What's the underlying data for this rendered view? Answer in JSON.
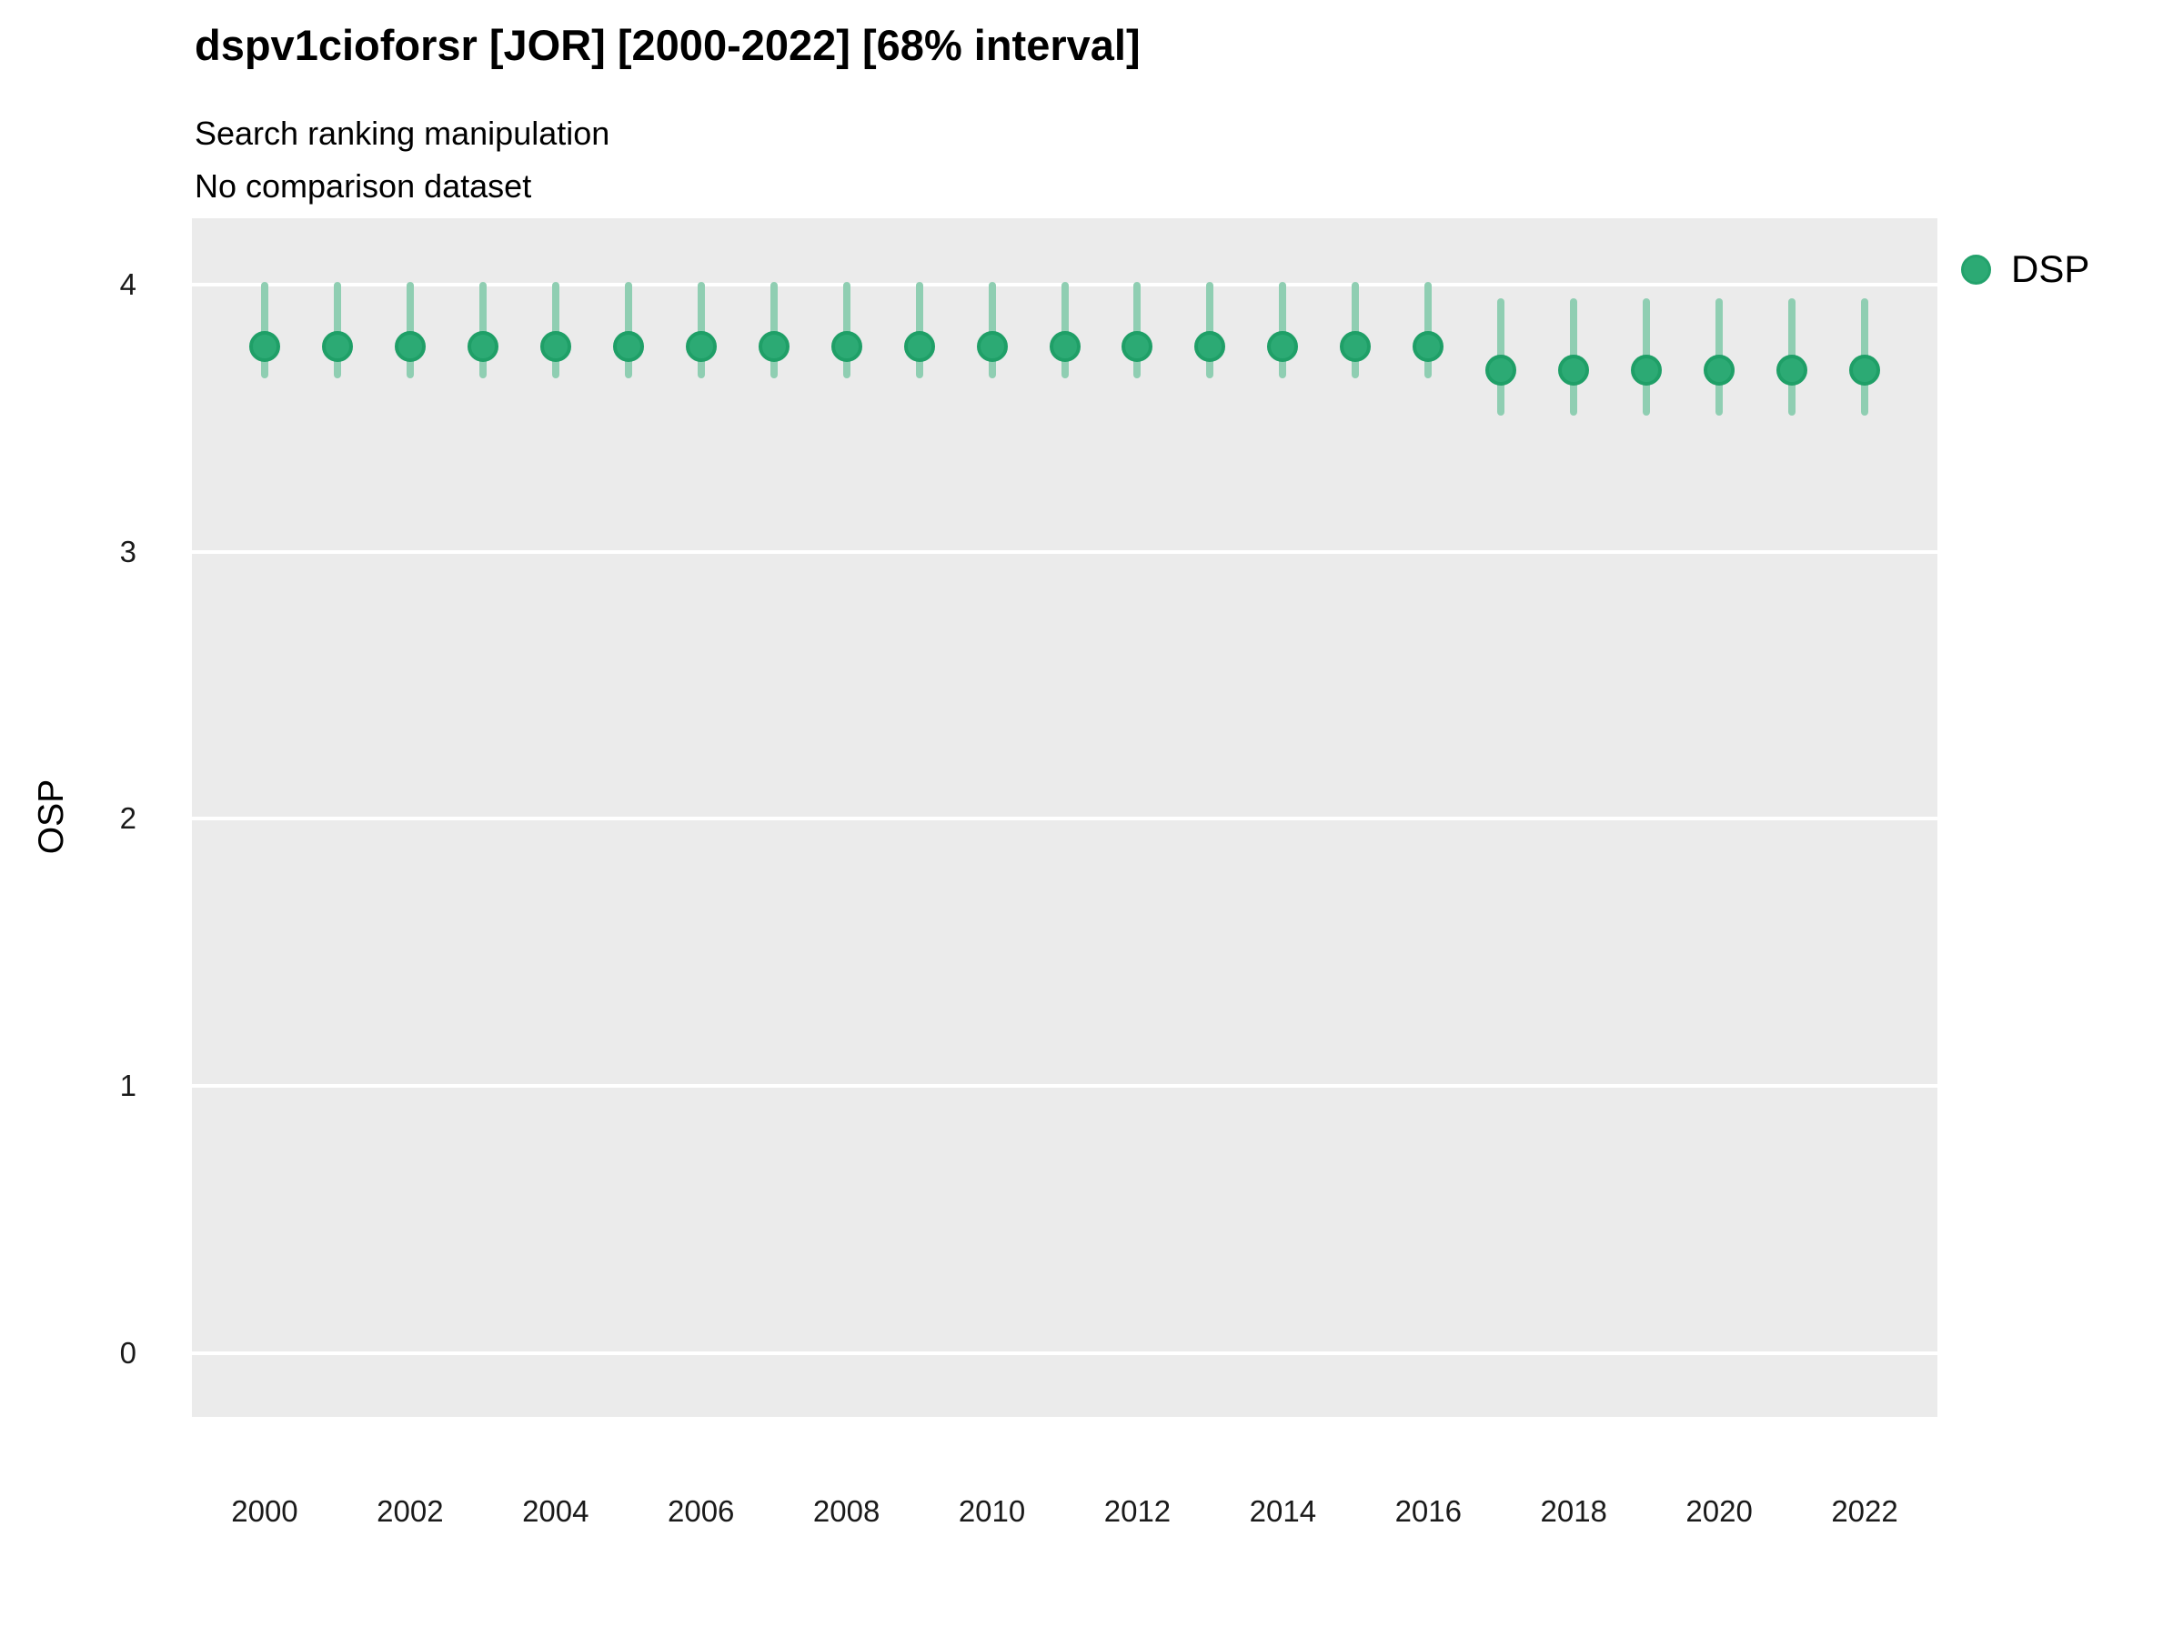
{
  "title": "dspv1cioforsr [JOR] [2000-2022] [68% interval]",
  "subtitle": {
    "line1": "Search ranking manipulation",
    "line2": "No comparison dataset"
  },
  "legend": {
    "position": "right",
    "items": [
      {
        "label": "DSP",
        "marker": "circle-icon",
        "color": "#2caa74"
      }
    ]
  },
  "colors": {
    "page_background": "#ffffff",
    "panel_background": "#ebebeb",
    "gridline": "#ffffff",
    "point_fill": "#2caa74",
    "point_stroke": "#1f9f67",
    "interval_bar": "#8fceb2",
    "text": "#000000"
  },
  "chart_data": {
    "type": "scatter",
    "subtype": "pointrange",
    "title": "dspv1cioforsr [JOR] [2000-2022] [68% interval]",
    "subtitle1": "Search ranking manipulation",
    "subtitle2": "No comparison dataset",
    "xlabel": "",
    "ylabel": "OSP",
    "interval": "68%",
    "x": [
      2000,
      2001,
      2002,
      2003,
      2004,
      2005,
      2006,
      2007,
      2008,
      2009,
      2010,
      2011,
      2012,
      2013,
      2014,
      2015,
      2016,
      2017,
      2018,
      2019,
      2020,
      2021,
      2022
    ],
    "series": [
      {
        "name": "DSP",
        "values": [
          3.77,
          3.77,
          3.77,
          3.77,
          3.77,
          3.77,
          3.77,
          3.77,
          3.77,
          3.77,
          3.77,
          3.77,
          3.77,
          3.77,
          3.77,
          3.77,
          3.77,
          3.68,
          3.68,
          3.68,
          3.68,
          3.68,
          3.68
        ],
        "lower": [
          3.65,
          3.65,
          3.65,
          3.65,
          3.65,
          3.65,
          3.65,
          3.65,
          3.65,
          3.65,
          3.65,
          3.65,
          3.65,
          3.65,
          3.65,
          3.65,
          3.65,
          3.51,
          3.51,
          3.51,
          3.51,
          3.51,
          3.51
        ],
        "upper": [
          4.01,
          4.01,
          4.01,
          4.01,
          4.01,
          4.01,
          4.01,
          4.01,
          4.01,
          4.01,
          4.01,
          4.01,
          4.01,
          4.01,
          4.01,
          4.01,
          4.01,
          3.95,
          3.95,
          3.95,
          3.95,
          3.95,
          3.95
        ]
      }
    ],
    "x_tick_labels": [
      "2000",
      "2002",
      "2004",
      "2006",
      "2008",
      "2010",
      "2012",
      "2014",
      "2016",
      "2018",
      "2020",
      "2022"
    ],
    "x_tick_values": [
      2000,
      2002,
      2004,
      2006,
      2008,
      2010,
      2012,
      2014,
      2016,
      2018,
      2020,
      2022
    ],
    "y_tick_labels": [
      "0",
      "1",
      "2",
      "3",
      "4"
    ],
    "y_tick_values": [
      0,
      1,
      2,
      3,
      4
    ],
    "xlim": [
      1999.0,
      2023.0
    ],
    "ylim": [
      -0.24,
      4.25
    ],
    "grid": "major-horizontal-only",
    "legend_position": "right"
  }
}
